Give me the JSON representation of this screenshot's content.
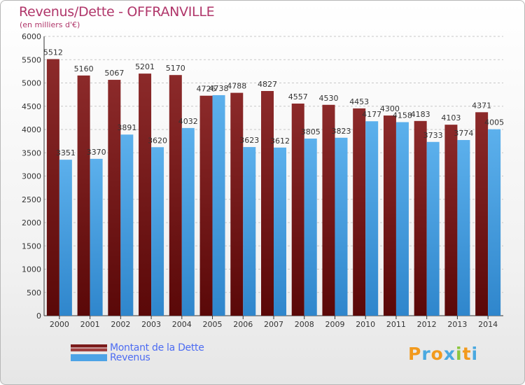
{
  "chart_data": {
    "type": "bar",
    "title": "Revenus/Dette - OFFRANVILLE",
    "subtitle": "(en milliers d'€)",
    "categories": [
      "2000",
      "2001",
      "2002",
      "2003",
      "2004",
      "2005",
      "2006",
      "2007",
      "2008",
      "2009",
      "2010",
      "2011",
      "2012",
      "2013",
      "2014"
    ],
    "series": [
      {
        "name": "Montant de la Dette",
        "color": "#7a1a1a",
        "values": [
          5512,
          5160,
          5067,
          5201,
          5170,
          4726,
          4788,
          4827,
          4557,
          4530,
          4453,
          4300,
          4183,
          4103,
          4371
        ]
      },
      {
        "name": "Revenus",
        "color": "#4da3e6",
        "values": [
          3351,
          3370,
          3891,
          3620,
          4032,
          4738,
          3623,
          3612,
          3805,
          3823,
          4177,
          4158,
          3733,
          3774,
          4005
        ]
      }
    ],
    "ylim": [
      0,
      6000
    ],
    "yticks": [
      0,
      500,
      1000,
      1500,
      2000,
      2500,
      3000,
      3500,
      4000,
      4500,
      5000,
      5500,
      6000
    ],
    "grid": true,
    "legend_position": "bottom-left"
  },
  "logo": {
    "letters": [
      "P",
      "r",
      "o",
      "x",
      "i",
      "t",
      "i"
    ],
    "colors": [
      "#f29a1d",
      "#4aa9e0",
      "#f29a1d",
      "#4aa9e0",
      "#8cc63f",
      "#f29a1d",
      "#4aa9e0"
    ]
  }
}
